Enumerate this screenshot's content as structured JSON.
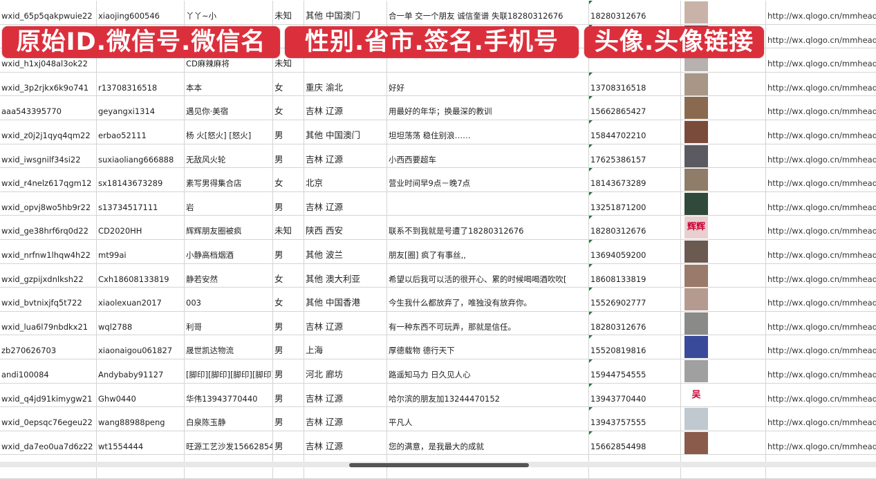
{
  "overlays": {
    "banner1": "原始ID.微信号.微信名",
    "banner2": "性别.省市.签名.手机号",
    "banner3": "头像.头像链接"
  },
  "rows": [
    [
      "wxid_65p5qakpwuie22",
      "xiaojing600546",
      "丫丫~小",
      "未知",
      "其他 中国澳门",
      "合一单 交一个朋友 诚信奎谱 失联18280312676",
      "18280312676",
      "",
      "http://wx.qlogo.cn/mmhead"
    ],
    [
      "",
      "",
      "",
      "",
      "",
      "",
      "",
      "",
      "http://wx.qlogo.cn/mmhead"
    ],
    [
      "wxid_h1xj048al3ok22",
      "",
      "CD麻辣麻将",
      "未知",
      "",
      "",
      "",
      "",
      "http://wx.qlogo.cn/mmhead"
    ],
    [
      "wxid_3p2rjkx6k9o741",
      "r13708316518",
      "本本",
      "女",
      "重庆 渝北",
      "好好",
      "13708316518",
      "",
      "http://wx.qlogo.cn/mmhead"
    ],
    [
      "aaa543395770",
      "geyangxi1314",
      "遇见你·美宿",
      "女",
      "吉林 辽源",
      "用最好的年华；换最深的教训",
      "15662865427",
      "",
      "http://wx.qlogo.cn/mmhead"
    ],
    [
      "wxid_z0j2j1qyq4qm22",
      "erbao52111",
      "杨 火[怒火] [怒火]",
      "男",
      "其他 中国澳门",
      "坦坦荡荡 稳住别浪……",
      "15844702210",
      "",
      "http://wx.qlogo.cn/mmhead"
    ],
    [
      "wxid_iwsgnilf34si22",
      "suxiaoliang666888",
      "无敌风火轮",
      "男",
      "吉林 辽源",
      "小西西要超车",
      "17625386157",
      "",
      "http://wx.qlogo.cn/mmhead"
    ],
    [
      "wxid_r4nelz617qgm12",
      "sx18143673289",
      "素写男得集合店",
      "女",
      "北京",
      "营业时间早9点－晚7点",
      "18143673289",
      "",
      "http://wx.qlogo.cn/mmhead"
    ],
    [
      "wxid_opvj8wo5hb9r22",
      "s13734517111",
      "岩",
      "男",
      "吉林 辽源",
      "",
      "13251871200",
      "",
      "http://wx.qlogo.cn/mmhead"
    ],
    [
      "wxid_ge38hrf6rq0d22",
      "CD2020HH",
      "辉辉朋友圈被疯",
      "未知",
      "陕西 西安",
      "联系不到我就是号遭了18280312676",
      "18280312676",
      "",
      "http://wx.qlogo.cn/mmhead"
    ],
    [
      "wxid_nrfnw1lhqw4h22",
      "mt99ai",
      "小静高档烟酒",
      "男",
      "其他 波兰",
      "朋友[圈] 疯了有事丝,,",
      "13694059200",
      "",
      "http://wx.qlogo.cn/mmhead"
    ],
    [
      "wxid_gzpijxdnlksh22",
      "Cxh18608133819",
      "静若安然",
      "女",
      "其他 澳大利亚",
      "希望以后我可以活的很开心、累的时候喝喝酒吹吹[",
      "18608133819",
      "",
      "http://wx.qlogo.cn/mmhead"
    ],
    [
      "wxid_bvtnixjfq5t722",
      "xiaolexuan2017",
      "003",
      "女",
      "其他 中国香港",
      "今生我什么都放弃了，唯独没有放弃你。",
      "15526902777",
      "",
      "http://wx.qlogo.cn/mmhead"
    ],
    [
      "wxid_lua6l79nbdkx21",
      "wql2788",
      "利哥",
      "男",
      "吉林 辽源",
      "有一种东西不可玩弄，那就是信任。",
      "18280312676",
      "",
      "http://wx.qlogo.cn/mmhead"
    ],
    [
      "zb270626703",
      "xiaonaigou061827",
      "晟世凯达物流",
      "男",
      "上海",
      "厚德载物 德行天下",
      "15520819816",
      "",
      "http://wx.qlogo.cn/mmhead"
    ],
    [
      "andi100084",
      "Andybaby91127",
      "[脚印][脚印][脚印][脚印]",
      "男",
      "河北 廊坊",
      "路遥知马力 日久见人心",
      "15944754555",
      "",
      "http://wx.qlogo.cn/mmhead"
    ],
    [
      "wxid_q4jd91kimygw21",
      "Ghw0440",
      "华伟13943770440",
      "男",
      "吉林 辽源",
      "哈尔滨的朋友加13244470152",
      "13943770440",
      "",
      "http://wx.qlogo.cn/mmhead"
    ],
    [
      "wxid_0epsqc76egeu22",
      "wang88988peng",
      "白泉陈玉静",
      "男",
      "吉林 辽源",
      "平凡人",
      "13943757555",
      "",
      "http://wx.qlogo.cn/mmhead"
    ],
    [
      "wxid_da7eo0ua7d6z22",
      "wt1554444",
      "旺源工艺沙发15662854",
      "男",
      "吉林 辽源",
      "您的满意，是我最大的成就",
      "15662854498",
      "",
      "http://wx.qlogo.cn/mmhead"
    ],
    [
      "",
      "",
      "",
      "",
      "",
      "",
      "",
      "",
      ""
    ]
  ],
  "avatar_colors": [
    "#c9b3a8",
    "#3b4a6e",
    "#b7b2b0",
    "#a89687",
    "#8a6a4e",
    "#7a4a3a",
    "#5a5a60",
    "#8f7d6a",
    "#2f4a3a",
    "#e8d0d0",
    "#6b5a50",
    "#9a7a6a",
    "#b59a90",
    "#8a8a88",
    "#3a4a9a",
    "#a0a0a0",
    "#ffffff",
    "#c0c8d0",
    "#8a5a4a",
    "#6a7aaa"
  ],
  "avatar_text": {
    "9": "辉辉",
    "16": "吴"
  },
  "accent": "#dc2f3c"
}
